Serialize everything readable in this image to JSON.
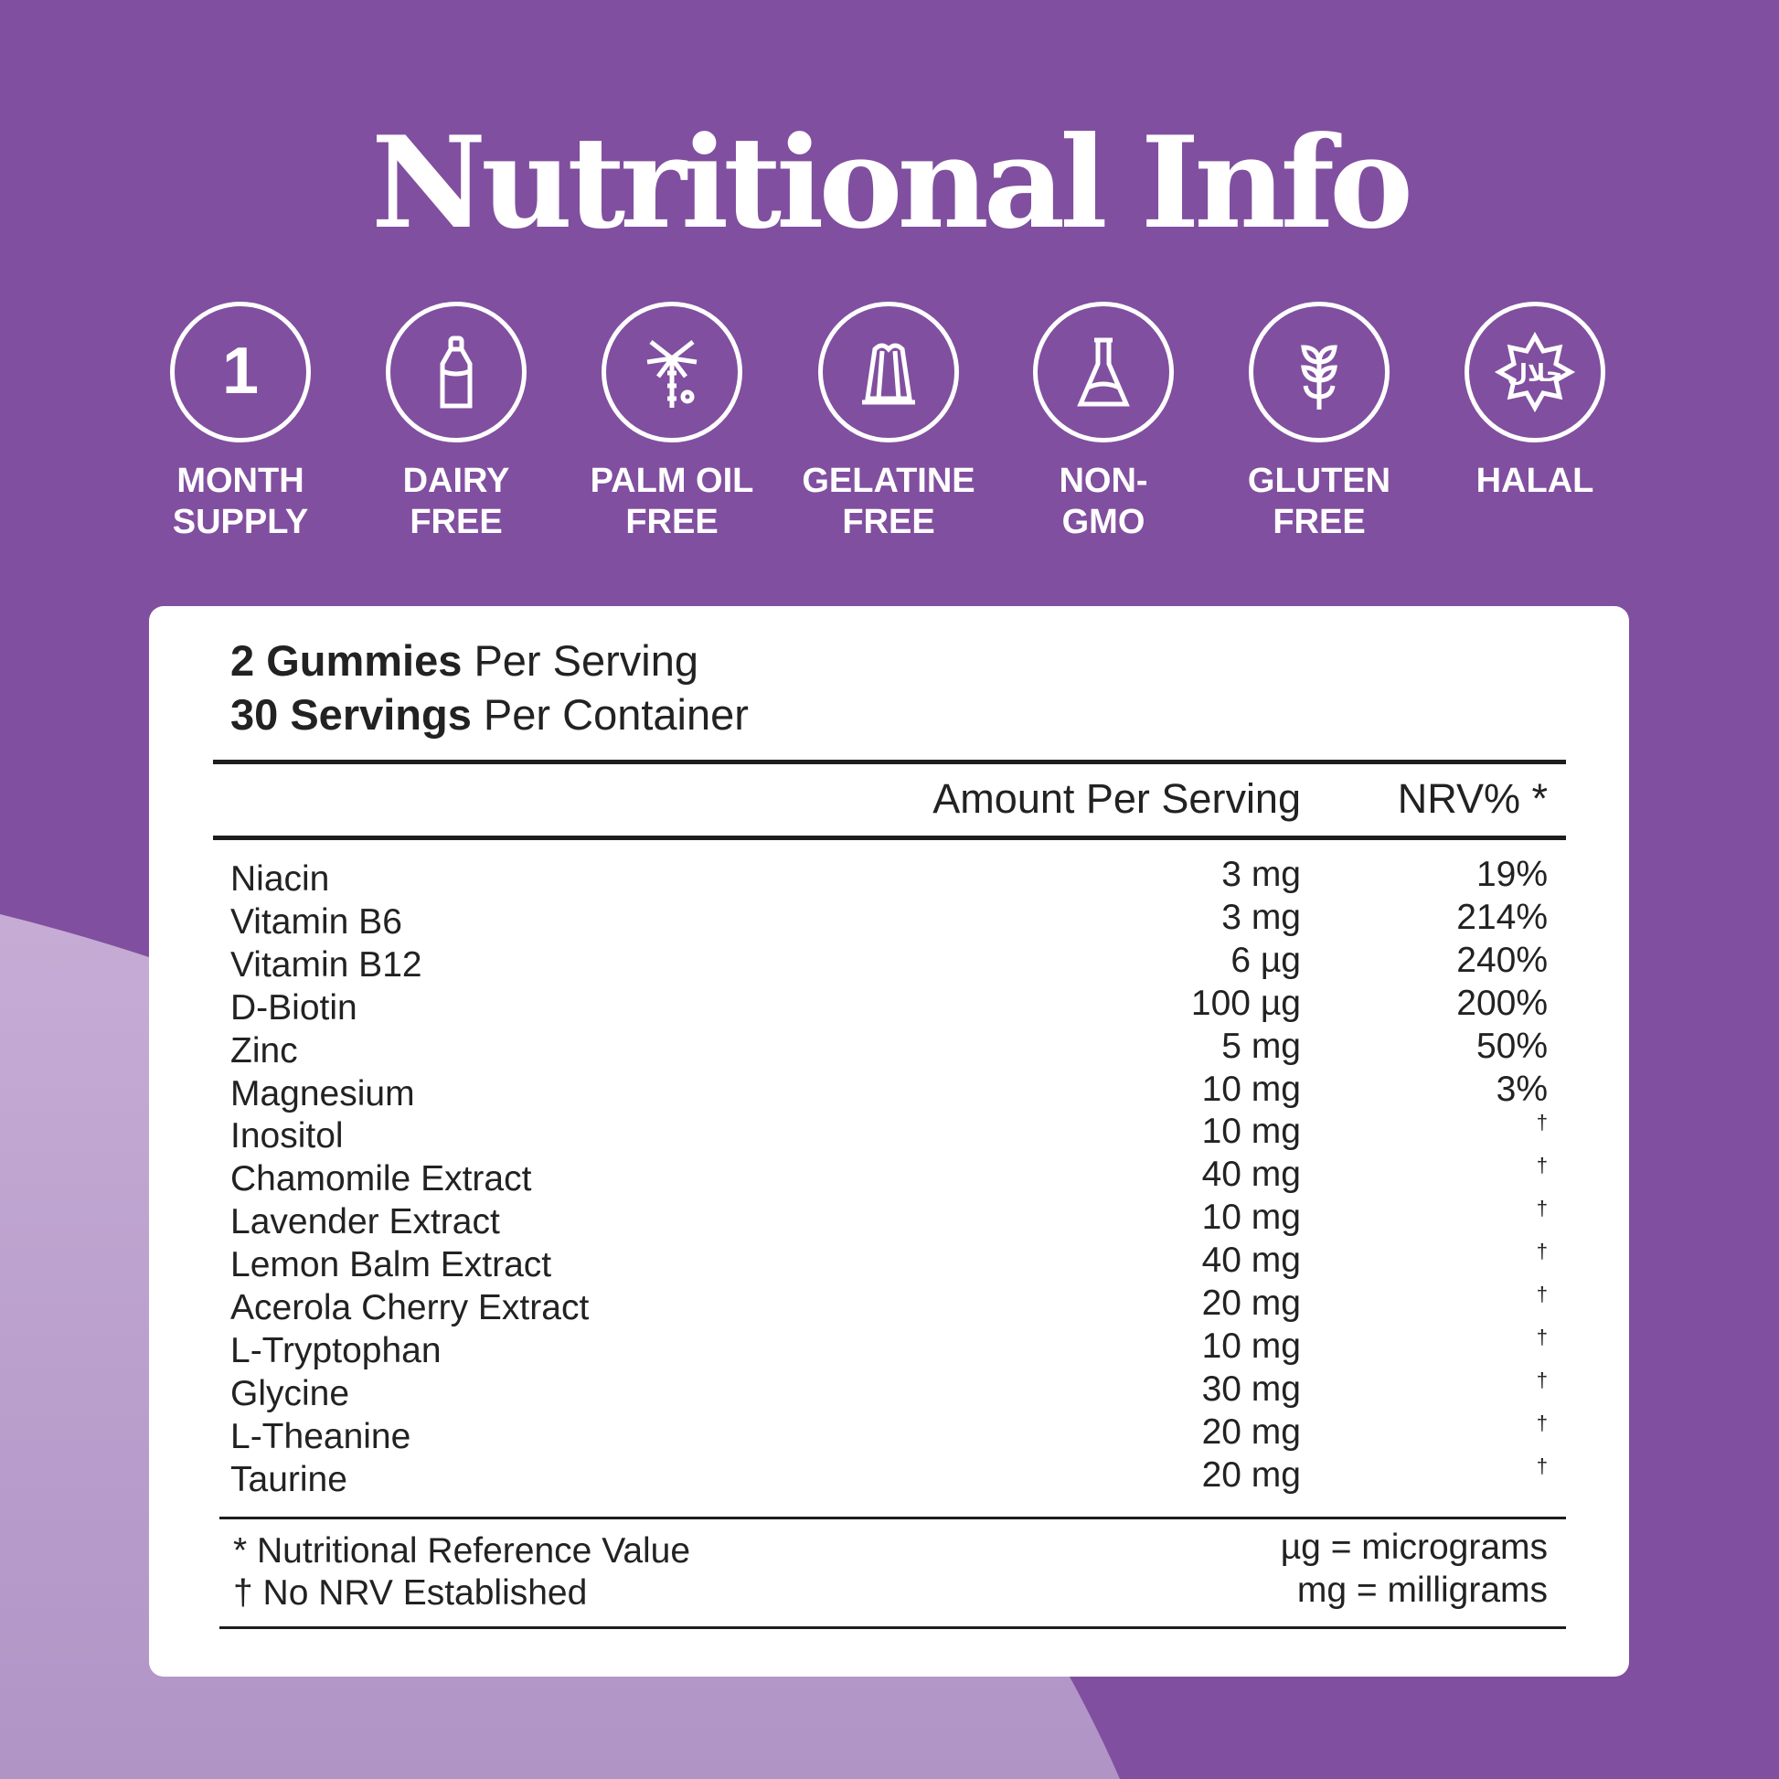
{
  "title": "Nutritional Info",
  "colors": {
    "background": "#814f9f",
    "accent_light": "#bba0cd",
    "card": "#ffffff",
    "text": "#222222"
  },
  "badges": [
    {
      "icon": "number-one-icon",
      "label": "MONTH\nSUPPLY"
    },
    {
      "icon": "milk-bottle-icon",
      "label": "DAIRY\nFREE"
    },
    {
      "icon": "palm-tree-icon",
      "label": "PALM OIL\nFREE"
    },
    {
      "icon": "jelly-mould-icon",
      "label": "GELATINE\nFREE"
    },
    {
      "icon": "flask-icon",
      "label": "NON-\nGMO"
    },
    {
      "icon": "wheat-icon",
      "label": "GLUTEN\nFREE"
    },
    {
      "icon": "halal-icon",
      "label": "HALAL",
      "icon_text": "حلال"
    }
  ],
  "serving": {
    "size_bold": "2 Gummies",
    "size_rest": " Per Serving",
    "servings_bold": "30 Servings",
    "servings_rest": " Per Container"
  },
  "header": {
    "amount": "Amount Per Serving",
    "nrv": "NRV% *"
  },
  "rows": [
    {
      "name": "Niacin",
      "amount": "3 mg",
      "nrv": "19%"
    },
    {
      "name": "Vitamin B6",
      "amount": "3 mg",
      "nrv": "214%"
    },
    {
      "name": "Vitamin B12",
      "amount": "6 µg",
      "nrv": "240%"
    },
    {
      "name": "D-Biotin",
      "amount": "100 µg",
      "nrv": "200%"
    },
    {
      "name": "Zinc",
      "amount": "5 mg",
      "nrv": "50%"
    },
    {
      "name": "Magnesium",
      "amount": "10 mg",
      "nrv": "3%"
    },
    {
      "name": "Inositol",
      "amount": "10 mg",
      "nrv": "†"
    },
    {
      "name": "Chamomile Extract",
      "amount": "40 mg",
      "nrv": "†"
    },
    {
      "name": "Lavender Extract",
      "amount": "10 mg",
      "nrv": "†"
    },
    {
      "name": "Lemon Balm Extract",
      "amount": "40 mg",
      "nrv": "†"
    },
    {
      "name": "Acerola Cherry Extract",
      "amount": "20 mg",
      "nrv": "†"
    },
    {
      "name": "L-Tryptophan",
      "amount": "10 mg",
      "nrv": "†"
    },
    {
      "name": "Glycine",
      "amount": "30 mg",
      "nrv": "†"
    },
    {
      "name": "L-Theanine",
      "amount": "20 mg",
      "nrv": "†"
    },
    {
      "name": "Taurine",
      "amount": "20 mg",
      "nrv": "†"
    }
  ],
  "footer": {
    "nrv_note": "* Nutritional Reference Value",
    "no_nrv_note": "† No NRV Established",
    "ug_note": "µg = micrograms",
    "mg_note": "mg = milligrams"
  }
}
